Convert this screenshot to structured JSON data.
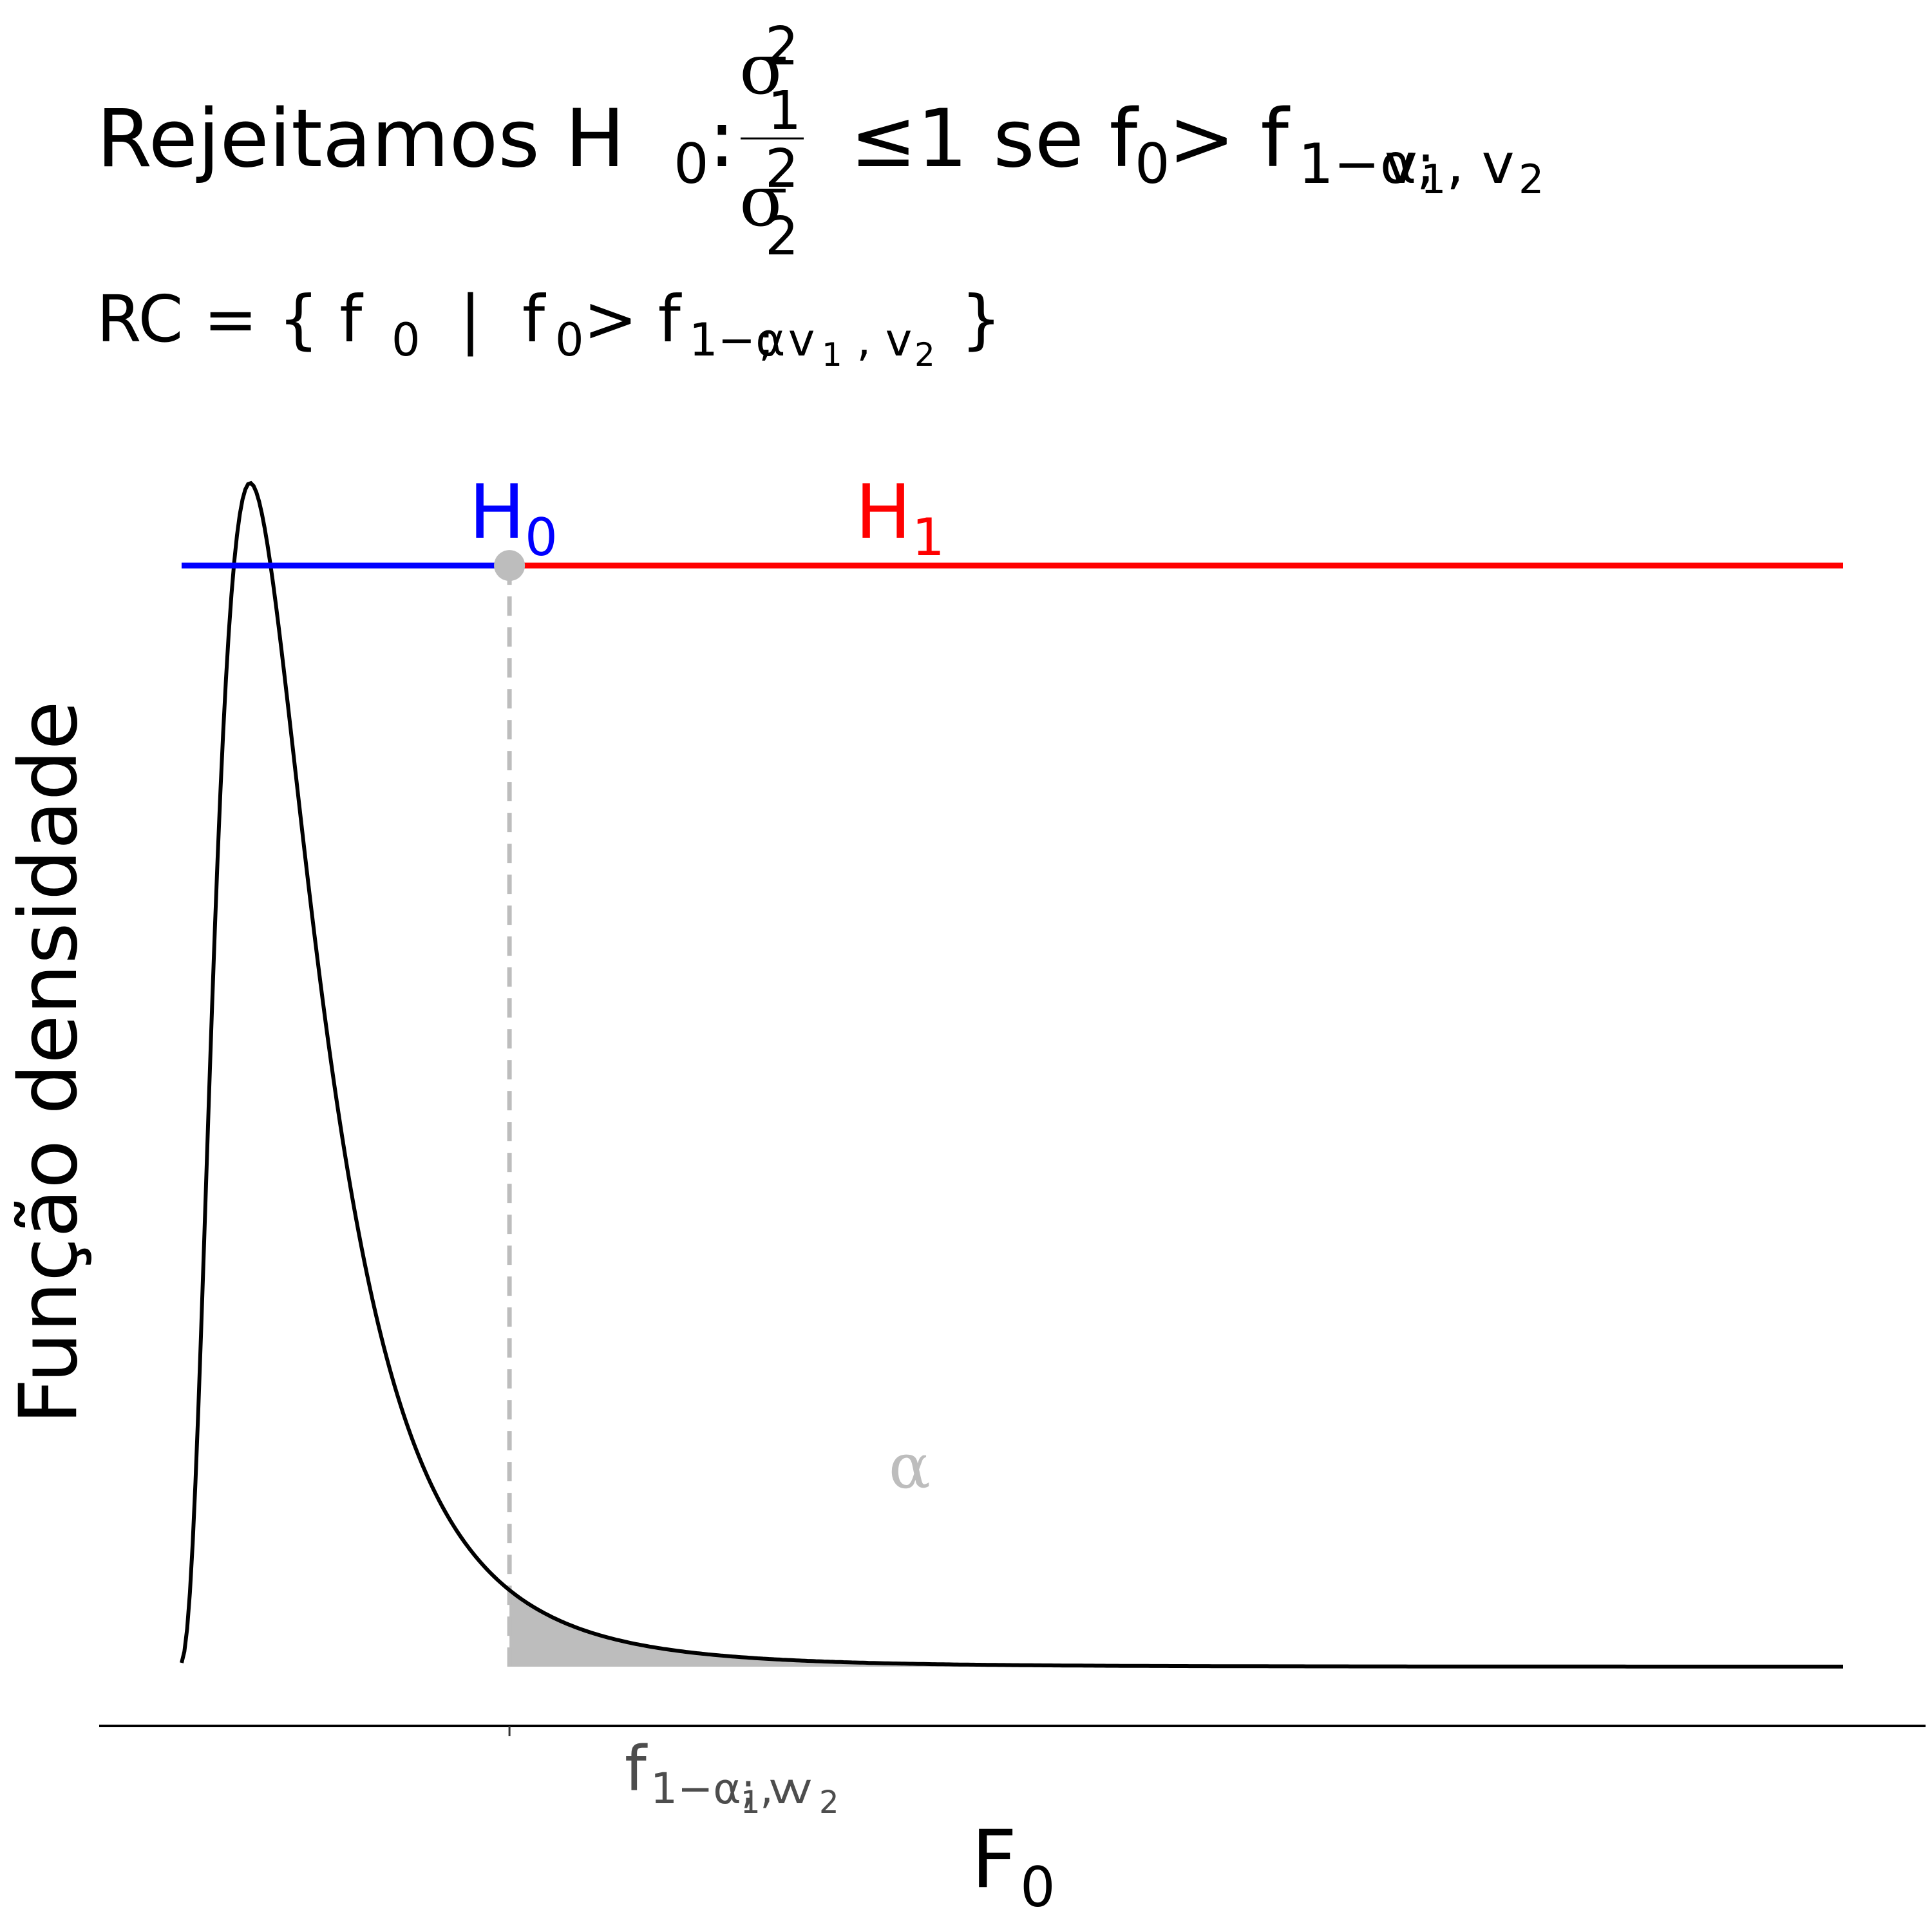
{
  "chart_data": {
    "type": "line",
    "title": {
      "prefix": "Rejeitamos H",
      "h0_sub": "0",
      "colon": ":",
      "sigma": "σ",
      "num_sub": "1",
      "num_sup": "2",
      "den_sub": "2",
      "den_sup": "2",
      "le": "≤1 se f",
      "f0_sub": "0",
      "gt": " > f",
      "crit_sub_a": "1−α; ",
      "v": "v",
      "v1_sub": "1",
      "comma": ", v",
      "v2_sub": "2"
    },
    "subtitle": {
      "rc": "RC = { f",
      "s0": "0",
      "bar": "  |  f",
      "s1": "0",
      "gt": " > f",
      "crit": "1−α",
      "rest_a": "; v",
      "v1": "1",
      "rest_b": " , v",
      "v2": "2",
      "close": " }"
    },
    "xlabel": {
      "main": "F",
      "sub": "0"
    },
    "ylabel": "Função densidade",
    "x_tick": {
      "main": "f",
      "sub_a": "1−α; v",
      "v1": "1",
      "mid": ", v",
      "v2": "2"
    },
    "hypotheses": {
      "h0": {
        "main": "H",
        "sub": "0",
        "color": "#0000ff"
      },
      "h1": {
        "main": "H",
        "sub": "1",
        "color": "#ff0000"
      }
    },
    "alpha_label": "α",
    "distribution": {
      "name": "F",
      "d1": 10,
      "d2": 10
    },
    "critical_value": 3,
    "xlim": [
      0.05,
      15
    ],
    "ylim": [
      0,
      0.82
    ],
    "hypothesis_line_y": 0.7,
    "colors": {
      "curve": "#000000",
      "h0_line": "#0000ff",
      "h1_line": "#ff0000",
      "critical": "#bdbdbd",
      "shade": "#bdbdbd",
      "axis": "#000000",
      "tick_text": "#4d4d4d"
    }
  }
}
